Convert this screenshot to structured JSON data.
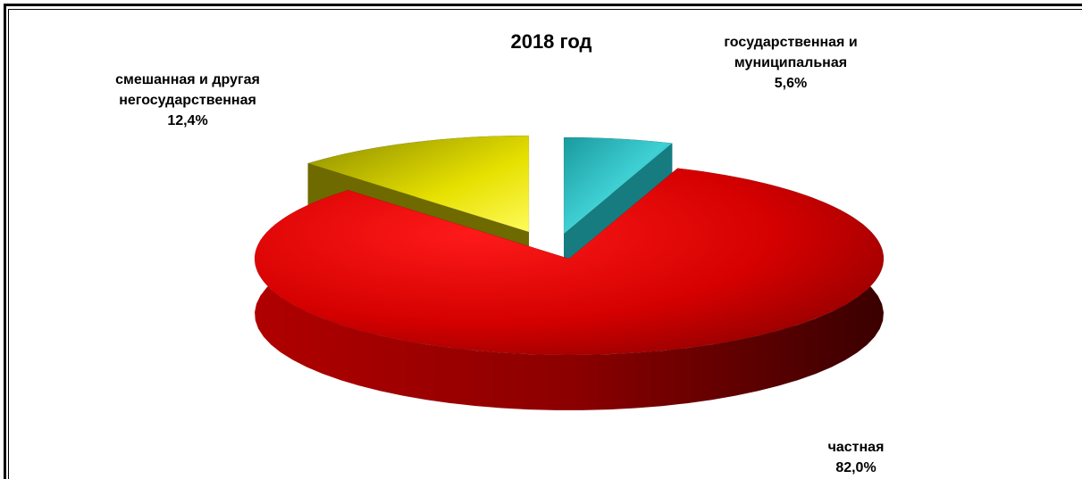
{
  "chart_data": {
    "type": "pie",
    "title": "2018 год",
    "slices": [
      {
        "name": "государственная и муниципальная",
        "label_lines": [
          "государственная и",
          "муниципальная"
        ],
        "value": 5.6,
        "value_label": "5,6%",
        "color": "#2fb5b8"
      },
      {
        "name": "частная",
        "label_lines": [
          "частная"
        ],
        "value": 82.0,
        "value_label": "82,0%",
        "color": "#dd0000"
      },
      {
        "name": "смешанная и другая негосударственная",
        "label_lines": [
          "смешанная и другая",
          "негосударственная"
        ],
        "value": 12.4,
        "value_label": "12,4%",
        "color": "#c9c400"
      }
    ]
  }
}
